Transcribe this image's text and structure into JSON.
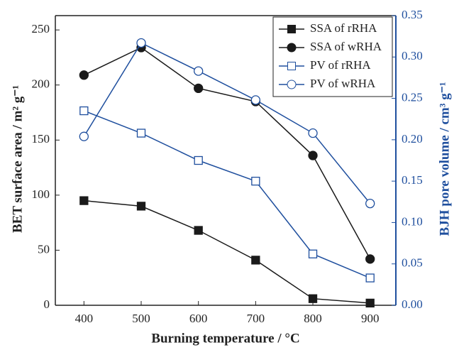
{
  "chart_data": {
    "type": "line",
    "xlabel": "Burning temperature / °C",
    "ylabel": "BET surface area / m² g⁻¹",
    "y2label": "BJH pore volume / cm³ g⁻¹",
    "x": [
      400,
      500,
      600,
      700,
      800,
      900
    ],
    "xlim": [
      350,
      945
    ],
    "xticks": [
      400,
      500,
      600,
      700,
      800,
      900
    ],
    "ylim": [
      0,
      263
    ],
    "yticks": [
      0,
      50,
      100,
      150,
      200,
      250
    ],
    "y2lim": [
      0,
      0.35
    ],
    "y2ticks": [
      {
        "value": 0,
        "label": "0.00"
      },
      {
        "value": 0.05,
        "label": "0.05"
      },
      {
        "value": 0.1,
        "label": "0.10"
      },
      {
        "value": 0.15,
        "label": "0.15"
      },
      {
        "value": 0.2,
        "label": "0.20"
      },
      {
        "value": 0.25,
        "label": "0.25"
      },
      {
        "value": 0.3,
        "label": "0.30"
      },
      {
        "value": 0.35,
        "label": "0.35"
      }
    ],
    "y2color": "#1f4f9e",
    "legend": "upper right",
    "series": [
      {
        "name": "SSA of rRHA",
        "color": "#1a1a1a",
        "marker": "square",
        "filled": true,
        "values": [
          95,
          90,
          68,
          41,
          6,
          2
        ]
      },
      {
        "name": "SSA of wRHA",
        "color": "#1a1a1a",
        "marker": "circle",
        "filled": true,
        "values": [
          209,
          234,
          197,
          185,
          136,
          42
        ]
      },
      {
        "name": "PV of rRHA",
        "color": "#1f4f9e",
        "marker": "square",
        "filled": false,
        "axis": "y2",
        "values": [
          0.235,
          0.208,
          0.175,
          0.15,
          0.062,
          0.033
        ]
      },
      {
        "name": "PV of wRHA",
        "color": "#1f4f9e",
        "marker": "circle",
        "filled": false,
        "axis": "y2",
        "values": [
          0.204,
          0.317,
          0.283,
          0.248,
          0.208,
          0.123
        ]
      }
    ]
  }
}
